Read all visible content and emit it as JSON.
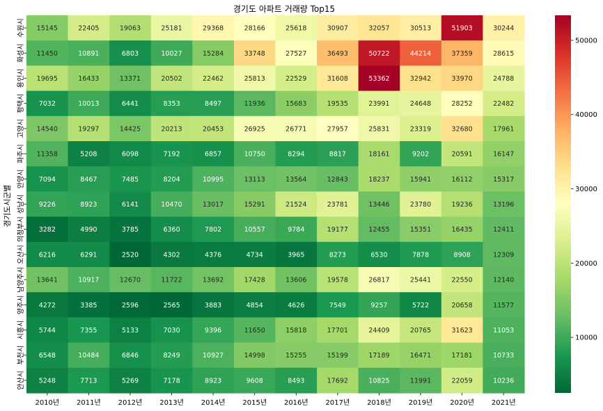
{
  "chart_data": {
    "type": "heatmap",
    "title": "경기도 아파트 거래량 Top15",
    "ylabel": "경기도시군별",
    "xlabel": "",
    "x_categories": [
      "2010년",
      "2011년",
      "2012년",
      "2013년",
      "2014년",
      "2015년",
      "2016년",
      "2017년",
      "2018년",
      "2019년",
      "2020년",
      "2021년"
    ],
    "y_categories": [
      "수원시",
      "화성시",
      "용인시",
      "평택시",
      "고양시",
      "파주시",
      "안양시",
      "성남시",
      "의정부시",
      "오산시",
      "남양주시",
      "양주시",
      "시흥시",
      "부천시",
      "안산시"
    ],
    "values": [
      [
        15145,
        22405,
        19063,
        25181,
        29368,
        28166,
        25618,
        30907,
        32057,
        30513,
        51903,
        30244
      ],
      [
        11450,
        10891,
        6803,
        10027,
        15284,
        33748,
        27527,
        36493,
        50722,
        44214,
        37359,
        28615
      ],
      [
        19695,
        16433,
        13371,
        20502,
        22462,
        25813,
        22529,
        31608,
        53362,
        32942,
        33970,
        24788
      ],
      [
        7032,
        10013,
        6441,
        8353,
        8497,
        11936,
        15683,
        19535,
        23991,
        24648,
        28252,
        22482
      ],
      [
        14540,
        19297,
        14425,
        20213,
        20453,
        26925,
        26771,
        27957,
        25831,
        23319,
        32680,
        17961
      ],
      [
        11358,
        5208,
        6098,
        7192,
        6857,
        10750,
        8294,
        8817,
        18161,
        9202,
        20591,
        16147
      ],
      [
        7094,
        8467,
        7485,
        8204,
        10995,
        13113,
        13564,
        12843,
        18237,
        15941,
        16112,
        15317
      ],
      [
        9226,
        8923,
        6141,
        10470,
        13017,
        15291,
        21524,
        23781,
        13446,
        23780,
        19236,
        13196
      ],
      [
        3282,
        4990,
        3785,
        6360,
        7802,
        10557,
        9784,
        19177,
        12455,
        15351,
        16435,
        12411
      ],
      [
        6216,
        6291,
        2520,
        4302,
        4376,
        4734,
        3965,
        8273,
        6530,
        7878,
        8908,
        12309
      ],
      [
        13641,
        10917,
        12670,
        11722,
        13692,
        17428,
        13606,
        19578,
        26817,
        25441,
        22550,
        12140
      ],
      [
        4272,
        3385,
        2596,
        2565,
        3883,
        4854,
        4626,
        7549,
        9257,
        5722,
        20658,
        11577
      ],
      [
        5744,
        7355,
        5133,
        7030,
        9396,
        11650,
        15818,
        17701,
        24409,
        20765,
        31623,
        11053
      ],
      [
        6548,
        10484,
        6846,
        8249,
        10927,
        14998,
        15255,
        15199,
        17189,
        16471,
        17181,
        10733
      ],
      [
        5248,
        7713,
        5269,
        7178,
        8923,
        9608,
        8493,
        17692,
        10825,
        11991,
        22059,
        10236
      ]
    ],
    "colormap": "RdYlGn_r",
    "colormap_stops": [
      "#006837",
      "#1a9850",
      "#66bd63",
      "#a6d96a",
      "#d9ef8b",
      "#ffffbf",
      "#fee08b",
      "#fdae61",
      "#f46d43",
      "#d73027",
      "#a50026"
    ],
    "vmin": 2520,
    "vmax": 53362,
    "colorbar_ticks": [
      10000,
      20000,
      30000,
      40000,
      50000
    ],
    "annotations": true,
    "grid": false,
    "colorbar_position": "right"
  }
}
